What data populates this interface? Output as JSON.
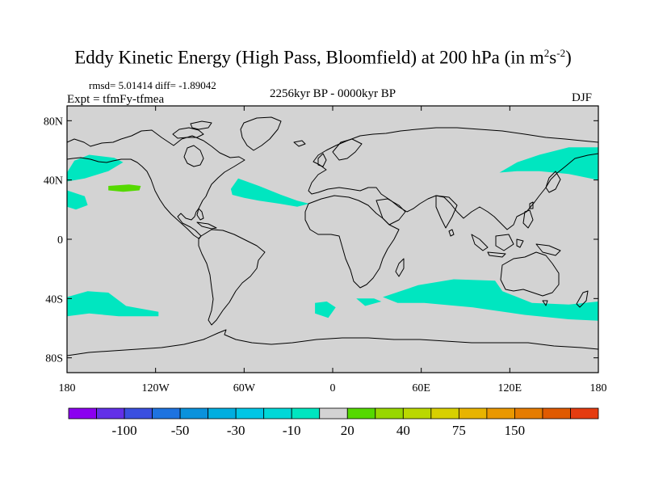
{
  "title": {
    "text": "Eddy Kinetic Energy (High Pass, Bloomfield) at 200 hPa (in m",
    "sup1": "2",
    "mid": "s",
    "sup2": "-2",
    "close": ")"
  },
  "stats": {
    "rmsd_text": "rmsd= 5.01414 diff= -1.89042"
  },
  "expt": {
    "text": "Expt = tfmFy-tfmea"
  },
  "period": {
    "text": "2256kyr BP - 0000kyr BP"
  },
  "season": {
    "text": "DJF"
  },
  "map": {
    "projection": "cylindrical-equidistant",
    "lon_range": [
      -180,
      180
    ],
    "lat_range": [
      -90,
      90
    ],
    "background_color": "#d3d3d3",
    "y_ticks": [
      {
        "lat": 80,
        "label": "80N"
      },
      {
        "lat": 40,
        "label": "40N"
      },
      {
        "lat": 0,
        "label": "0"
      },
      {
        "lat": -40,
        "label": "40S"
      },
      {
        "lat": -80,
        "label": "80S"
      }
    ],
    "x_ticks": [
      {
        "lon": -180,
        "label": "180"
      },
      {
        "lon": -120,
        "label": "120W"
      },
      {
        "lon": -60,
        "label": "60W"
      },
      {
        "lon": 0,
        "label": "0"
      },
      {
        "lon": 60,
        "label": "60E"
      },
      {
        "lon": 120,
        "label": "120E"
      },
      {
        "lon": 180,
        "label": "180"
      }
    ],
    "anomaly_regions": [
      {
        "name": "north-pacific-east-asia",
        "value_band": "-30 to -10",
        "color": "#00e6c0",
        "points": [
          [
            113,
            45
          ],
          [
            125,
            52
          ],
          [
            140,
            57
          ],
          [
            160,
            62
          ],
          [
            180,
            62
          ],
          [
            180,
            40
          ],
          [
            160,
            44
          ],
          [
            140,
            46
          ],
          [
            125,
            46
          ]
        ]
      },
      {
        "name": "north-pacific-dateline",
        "value_band": "-30 to -10",
        "color": "#00e6c0",
        "points": [
          [
            -180,
            45
          ],
          [
            -175,
            53
          ],
          [
            -165,
            57
          ],
          [
            -148,
            55
          ],
          [
            -142,
            52
          ],
          [
            -152,
            46
          ],
          [
            -168,
            41
          ],
          [
            -180,
            39
          ]
        ]
      },
      {
        "name": "subtropical-pacific-west",
        "value_band": "-30 to -10",
        "color": "#00e6c0",
        "points": [
          [
            -180,
            33
          ],
          [
            -168,
            29
          ],
          [
            -166,
            23
          ],
          [
            -174,
            20
          ],
          [
            -180,
            22
          ]
        ]
      },
      {
        "name": "subtropical-pacific-east",
        "value_band": "10 to 20",
        "color": "#55d900",
        "points": [
          [
            -152,
            36
          ],
          [
            -138,
            37
          ],
          [
            -130,
            36
          ],
          [
            -131,
            33
          ],
          [
            -142,
            32
          ],
          [
            -152,
            33
          ]
        ]
      },
      {
        "name": "north-atlantic",
        "value_band": "-30 to -10",
        "color": "#00e6c0",
        "points": [
          [
            -69,
            34
          ],
          [
            -64,
            41
          ],
          [
            -50,
            36
          ],
          [
            -35,
            30
          ],
          [
            -24,
            26
          ],
          [
            -16,
            24
          ],
          [
            -24,
            22
          ],
          [
            -36,
            24
          ],
          [
            -50,
            26
          ],
          [
            -60,
            28
          ],
          [
            -68,
            30
          ]
        ]
      },
      {
        "name": "south-pacific",
        "value_band": "-30 to -10",
        "color": "#00e6c0",
        "points": [
          [
            -180,
            -39
          ],
          [
            -166,
            -35
          ],
          [
            -152,
            -36
          ],
          [
            -140,
            -45
          ],
          [
            -118,
            -49
          ],
          [
            -118,
            -52
          ],
          [
            -145,
            -52
          ],
          [
            -165,
            -50
          ],
          [
            -180,
            -52
          ]
        ]
      },
      {
        "name": "south-atlantic-small",
        "value_band": "-30 to -10",
        "color": "#00e6c0",
        "points": [
          [
            -12,
            -43
          ],
          [
            -4,
            -42
          ],
          [
            2,
            -46
          ],
          [
            -3,
            -53
          ],
          [
            -12,
            -50
          ]
        ]
      },
      {
        "name": "south-indian-small",
        "value_band": "-30 to -10",
        "color": "#00e6c0",
        "points": [
          [
            16,
            -40
          ],
          [
            28,
            -40
          ],
          [
            33,
            -42
          ],
          [
            22,
            -45
          ]
        ]
      },
      {
        "name": "southern-indian-ocean",
        "value_band": "-30 to -10",
        "color": "#00e6c0",
        "points": [
          [
            34,
            -39
          ],
          [
            58,
            -31
          ],
          [
            82,
            -27
          ],
          [
            110,
            -28
          ],
          [
            115,
            -35
          ],
          [
            135,
            -43
          ],
          [
            160,
            -44
          ],
          [
            180,
            -42
          ],
          [
            180,
            -55
          ],
          [
            160,
            -54
          ],
          [
            130,
            -51
          ],
          [
            95,
            -46
          ],
          [
            62,
            -43
          ],
          [
            44,
            -43
          ]
        ]
      }
    ]
  },
  "colorbar": {
    "colors": [
      "#8b00f0",
      "#6230e8",
      "#3a4fe0",
      "#1e73e0",
      "#0a92dc",
      "#00aee0",
      "#00c6e6",
      "#00d8d8",
      "#00e6c0",
      "#d3d3d3",
      "#55d900",
      "#98d700",
      "#bad800",
      "#d8d000",
      "#e8b400",
      "#ea9800",
      "#e67c00",
      "#e05a00",
      "#e53c10"
    ],
    "labels": [
      {
        "after_box": 1,
        "text": "-100"
      },
      {
        "after_box": 3,
        "text": "-50"
      },
      {
        "after_box": 5,
        "text": "-30"
      },
      {
        "after_box": 7,
        "text": "-10"
      },
      {
        "after_box": 9,
        "text": "20"
      },
      {
        "after_box": 11,
        "text": "40"
      },
      {
        "after_box": 13,
        "text": "75"
      },
      {
        "after_box": 15,
        "text": "150"
      }
    ]
  }
}
